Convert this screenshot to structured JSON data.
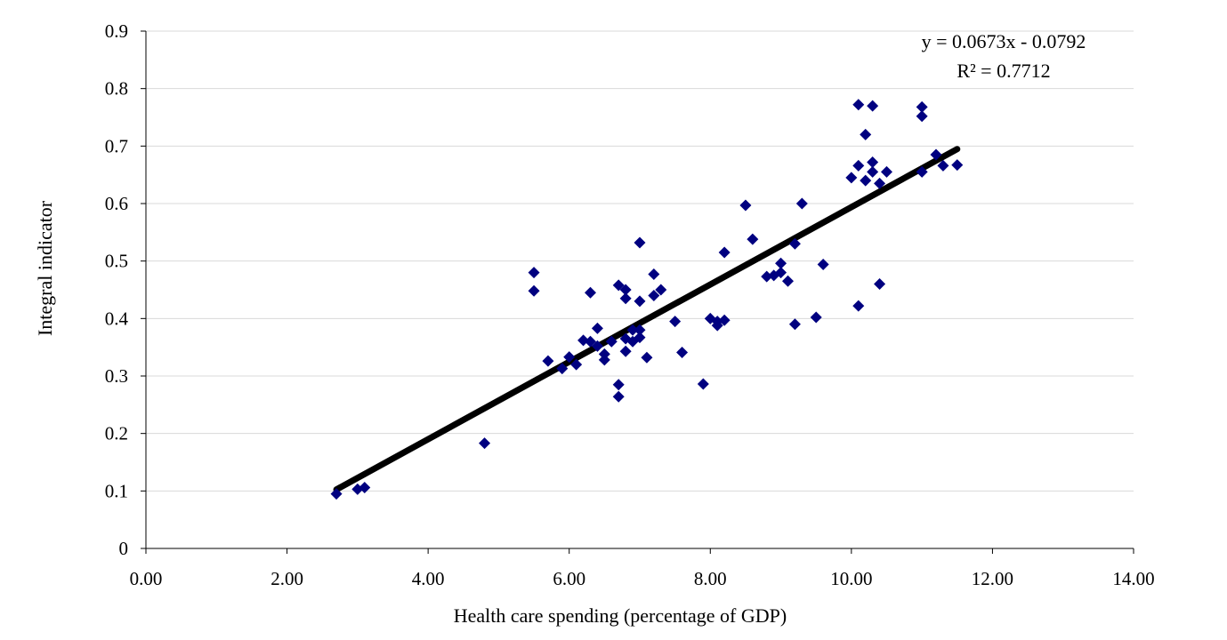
{
  "chart_data": {
    "type": "scatter",
    "xlabel": "Health care spending (percentage of GDP)",
    "ylabel": "Integral indicator",
    "xlim": [
      0,
      14
    ],
    "ylim": [
      0,
      0.9
    ],
    "x_ticks": [
      "0.00",
      "2.00",
      "4.00",
      "6.00",
      "8.00",
      "10.00",
      "12.00",
      "14.00"
    ],
    "y_ticks": [
      "0",
      "0.1",
      "0.2",
      "0.3",
      "0.4",
      "0.5",
      "0.6",
      "0.7",
      "0.8",
      "0.9"
    ],
    "grid": "horizontal",
    "marker": "diamond",
    "colors": {
      "points": "#000080",
      "trendline": "#000000",
      "grid": "#d9d9d9"
    },
    "annotations": [
      "y = 0.0673x - 0.0792",
      "R² = 0.7712"
    ],
    "trendline": {
      "slope": 0.0673,
      "intercept": -0.0792,
      "x_range": [
        2.7,
        11.5
      ]
    },
    "points": [
      [
        2.7,
        0.095
      ],
      [
        3.0,
        0.103
      ],
      [
        3.1,
        0.106
      ],
      [
        4.8,
        0.183
      ],
      [
        5.5,
        0.48
      ],
      [
        5.5,
        0.448
      ],
      [
        5.7,
        0.326
      ],
      [
        5.9,
        0.313
      ],
      [
        6.0,
        0.333
      ],
      [
        6.1,
        0.32
      ],
      [
        6.2,
        0.362
      ],
      [
        6.3,
        0.445
      ],
      [
        6.3,
        0.36
      ],
      [
        6.4,
        0.383
      ],
      [
        6.4,
        0.352
      ],
      [
        6.5,
        0.328
      ],
      [
        6.5,
        0.338
      ],
      [
        6.6,
        0.36
      ],
      [
        6.7,
        0.458
      ],
      [
        6.7,
        0.285
      ],
      [
        6.7,
        0.264
      ],
      [
        6.8,
        0.45
      ],
      [
        6.8,
        0.435
      ],
      [
        6.8,
        0.343
      ],
      [
        6.8,
        0.365
      ],
      [
        6.9,
        0.38
      ],
      [
        6.9,
        0.36
      ],
      [
        7.0,
        0.532
      ],
      [
        7.0,
        0.43
      ],
      [
        7.0,
        0.38
      ],
      [
        7.0,
        0.367
      ],
      [
        7.1,
        0.332
      ],
      [
        7.2,
        0.477
      ],
      [
        7.2,
        0.44
      ],
      [
        7.3,
        0.45
      ],
      [
        7.5,
        0.395
      ],
      [
        7.6,
        0.341
      ],
      [
        7.9,
        0.286
      ],
      [
        8.0,
        0.4
      ],
      [
        8.1,
        0.395
      ],
      [
        8.1,
        0.388
      ],
      [
        8.2,
        0.515
      ],
      [
        8.2,
        0.397
      ],
      [
        8.5,
        0.597
      ],
      [
        8.6,
        0.538
      ],
      [
        8.8,
        0.473
      ],
      [
        8.9,
        0.475
      ],
      [
        9.0,
        0.496
      ],
      [
        9.0,
        0.48
      ],
      [
        9.1,
        0.465
      ],
      [
        9.2,
        0.53
      ],
      [
        9.2,
        0.39
      ],
      [
        9.3,
        0.6
      ],
      [
        9.5,
        0.402
      ],
      [
        9.6,
        0.494
      ],
      [
        10.0,
        0.645
      ],
      [
        10.1,
        0.772
      ],
      [
        10.1,
        0.666
      ],
      [
        10.1,
        0.422
      ],
      [
        10.2,
        0.72
      ],
      [
        10.2,
        0.64
      ],
      [
        10.3,
        0.77
      ],
      [
        10.3,
        0.672
      ],
      [
        10.3,
        0.655
      ],
      [
        10.4,
        0.635
      ],
      [
        10.4,
        0.46
      ],
      [
        10.5,
        0.655
      ],
      [
        11.0,
        0.768
      ],
      [
        11.0,
        0.752
      ],
      [
        11.0,
        0.655
      ],
      [
        11.2,
        0.685
      ],
      [
        11.3,
        0.666
      ],
      [
        11.5,
        0.667
      ]
    ]
  }
}
